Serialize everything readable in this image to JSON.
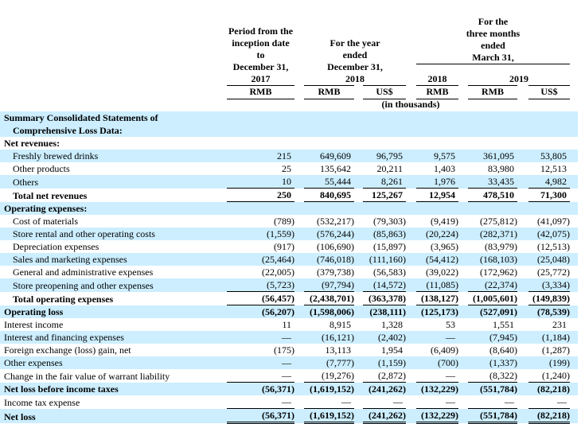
{
  "header": {
    "col1_lines": [
      "Period from the",
      "inception date",
      "to",
      "December 31,",
      "2017"
    ],
    "col23_lines": [
      "For the year",
      "ended",
      "December 31,",
      "2018"
    ],
    "col456_lines": [
      "For the",
      "three months",
      "ended",
      "March 31,"
    ],
    "col4_year": "2018",
    "col56_year": "2019",
    "currencies": [
      "RMB",
      "RMB",
      "US$",
      "RMB",
      "RMB",
      "US$"
    ],
    "units": "(in thousands)"
  },
  "rows": [
    {
      "label": "Summary Consolidated Statements of",
      "label2": "Comprehensive Loss Data:",
      "type": "summary",
      "values": []
    },
    {
      "label": "Net revenues:",
      "type": "section",
      "values": []
    },
    {
      "label": "Freshly brewed drinks",
      "type": "item",
      "values": [
        "215",
        "649,609",
        "96,795",
        "9,575",
        "361,095",
        "53,805"
      ]
    },
    {
      "label": "Other products",
      "type": "item",
      "values": [
        "25",
        "135,642",
        "20,211",
        "1,403",
        "83,980",
        "12,513"
      ]
    },
    {
      "label": "Others",
      "type": "item",
      "values": [
        "10",
        "55,444",
        "8,261",
        "1,976",
        "33,435",
        "4,982"
      ]
    },
    {
      "label": "Total net revenues",
      "type": "total",
      "values": [
        "250",
        "840,695",
        "125,267",
        "12,954",
        "478,510",
        "71,300"
      ]
    },
    {
      "label": "Operating expenses:",
      "type": "section",
      "values": []
    },
    {
      "label": "Cost of materials",
      "type": "item",
      "values": [
        "(789)",
        "(532,217)",
        "(79,303)",
        "(9,419)",
        "(275,812)",
        "(41,097)"
      ]
    },
    {
      "label": "Store rental and other operating costs",
      "type": "item",
      "values": [
        "(1,559)",
        "(576,244)",
        "(85,863)",
        "(20,224)",
        "(282,371)",
        "(42,075)"
      ]
    },
    {
      "label": "Depreciation expenses",
      "type": "item",
      "values": [
        "(917)",
        "(106,690)",
        "(15,897)",
        "(3,965)",
        "(83,979)",
        "(12,513)"
      ]
    },
    {
      "label": "Sales and marketing expenses",
      "type": "item",
      "values": [
        "(25,464)",
        "(746,018)",
        "(111,160)",
        "(54,412)",
        "(168,103)",
        "(25,048)"
      ]
    },
    {
      "label": "General and administrative expenses",
      "type": "item",
      "values": [
        "(22,005)",
        "(379,738)",
        "(56,583)",
        "(39,022)",
        "(172,962)",
        "(25,772)"
      ]
    },
    {
      "label": "Store preopening and other expenses",
      "type": "item",
      "values": [
        "(5,723)",
        "(97,794)",
        "(14,572)",
        "(11,085)",
        "(22,374)",
        "(3,334)"
      ]
    },
    {
      "label": "Total operating expenses",
      "type": "total",
      "values": [
        "(56,457)",
        "(2,438,701)",
        "(363,378)",
        "(138,127)",
        "(1,005,601)",
        "(149,839)"
      ]
    },
    {
      "label": "Operating loss",
      "type": "bold",
      "values": [
        "(56,207)",
        "(1,598,006)",
        "(238,111)",
        "(125,173)",
        "(527,091)",
        "(78,539)"
      ]
    },
    {
      "label": "Interest income",
      "type": "plain",
      "values": [
        "11",
        "8,915",
        "1,328",
        "53",
        "1,551",
        "231"
      ]
    },
    {
      "label": "Interest and financing expenses",
      "type": "plain",
      "values": [
        "—",
        "(16,121)",
        "(2,402)",
        "—",
        "(7,945)",
        "(1,184)"
      ]
    },
    {
      "label": "Foreign exchange (loss) gain, net",
      "type": "plain",
      "values": [
        "(175)",
        "13,113",
        "1,954",
        "(6,409)",
        "(8,640)",
        "(1,287)"
      ]
    },
    {
      "label": "Other expenses",
      "type": "plain",
      "values": [
        "—",
        "(7,777)",
        "(1,159)",
        "(700)",
        "(1,337)",
        "(199)"
      ]
    },
    {
      "label": "Change in the fair value of warrant liability",
      "type": "plain",
      "values": [
        "—",
        "(19,276)",
        "(2,872)",
        "—",
        "(8,322)",
        "(1,240)"
      ]
    },
    {
      "label": "Net loss before income taxes",
      "type": "subtotal",
      "values": [
        "(56,371)",
        "(1,619,152)",
        "(241,262)",
        "(132,229)",
        "(551,784)",
        "(82,218)"
      ]
    },
    {
      "label": "Income tax expense",
      "type": "plain",
      "values": [
        "—",
        "—",
        "—",
        "—",
        "—",
        "—"
      ]
    },
    {
      "label": "Net loss",
      "type": "grand",
      "values": [
        "(56,371)",
        "(1,619,152)",
        "(241,262)",
        "(132,229)",
        "(551,784)",
        "(82,218)"
      ]
    }
  ]
}
